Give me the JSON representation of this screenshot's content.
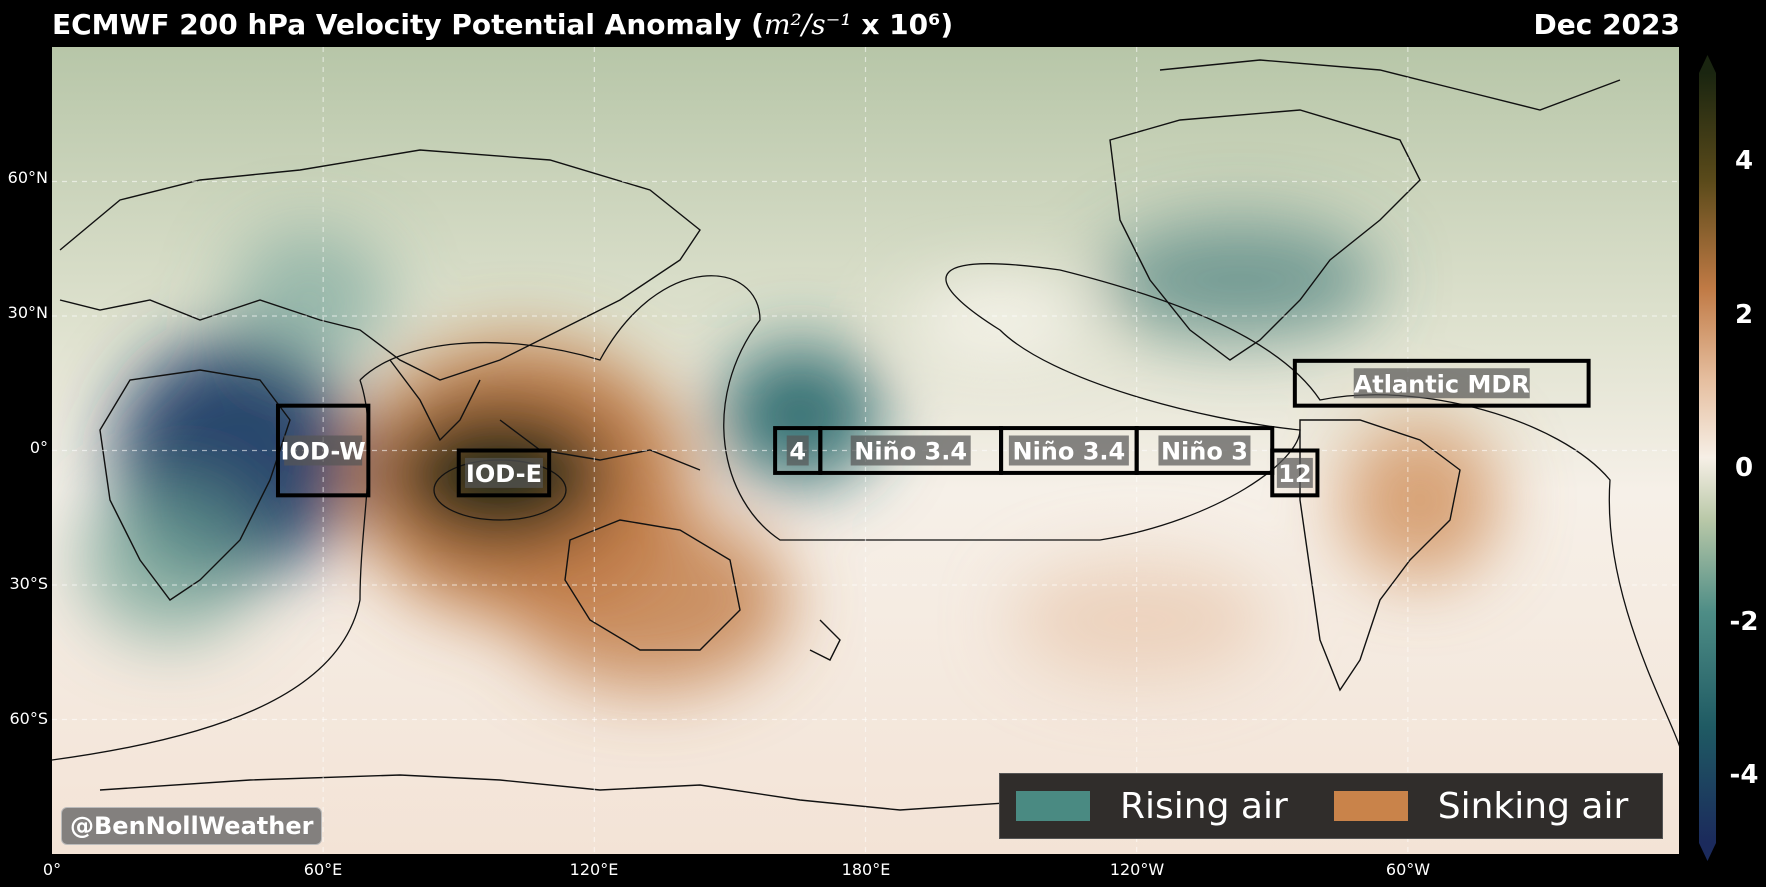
{
  "title": {
    "main": "ECMWF 200 hPa Velocity Potential Anomaly (",
    "unit": "m²/s⁻¹",
    "tail": " x 10⁶)",
    "date": "Dec 2023"
  },
  "axes": {
    "lat_labels": [
      "60°N",
      "30°N",
      "0°",
      "30°S",
      "60°S"
    ],
    "lon_labels": [
      "0°",
      "60°E",
      "120°E",
      "180°E",
      "120°W",
      "60°W"
    ],
    "lat_range": [
      -90,
      90
    ],
    "lon_range": [
      0,
      360
    ]
  },
  "colorbar": {
    "ticks": [
      "4",
      "2",
      "0",
      "-2",
      "-4"
    ],
    "range": [
      -5,
      5
    ],
    "colors": [
      "#1b2a5c",
      "#1f5a63",
      "#4e8d86",
      "#b9c8a8",
      "#f6efe6",
      "#d9a07a",
      "#b96a35",
      "#3d3b12",
      "#1a2510"
    ]
  },
  "regions": [
    {
      "label": "IOD-W",
      "lon": [
        50,
        70
      ],
      "lat": [
        -10,
        10
      ]
    },
    {
      "label": "IOD-E",
      "lon": [
        90,
        110
      ],
      "lat": [
        -10,
        0
      ]
    },
    {
      "label": "4",
      "lon": [
        160,
        170
      ],
      "lat": [
        -5,
        5
      ]
    },
    {
      "label": "Niño 3.4",
      "lon": [
        170,
        210
      ],
      "lat": [
        -5,
        5
      ]
    },
    {
      "label": "Niño 3.4",
      "lon": [
        210,
        240
      ],
      "lat": [
        -5,
        5
      ]
    },
    {
      "label": "Niño 3",
      "lon": [
        240,
        270
      ],
      "lat": [
        -5,
        5
      ]
    },
    {
      "label": "12",
      "lon": [
        270,
        280
      ],
      "lat": [
        -10,
        0
      ]
    },
    {
      "label": "Atlantic MDR",
      "lon": [
        275,
        340
      ],
      "lat": [
        10,
        20
      ]
    }
  ],
  "legend": {
    "rising": {
      "label": "Rising air",
      "color": "#4a8a82"
    },
    "sinking": {
      "label": "Sinking air",
      "color": "#c9834a"
    }
  },
  "credit": "@BenNollWeather",
  "colors": {
    "rising": "#1b3d5c",
    "sinking": "#b96a35",
    "neutral": "#f5ede4",
    "north": "#b7c6a8",
    "background": "#000000"
  }
}
